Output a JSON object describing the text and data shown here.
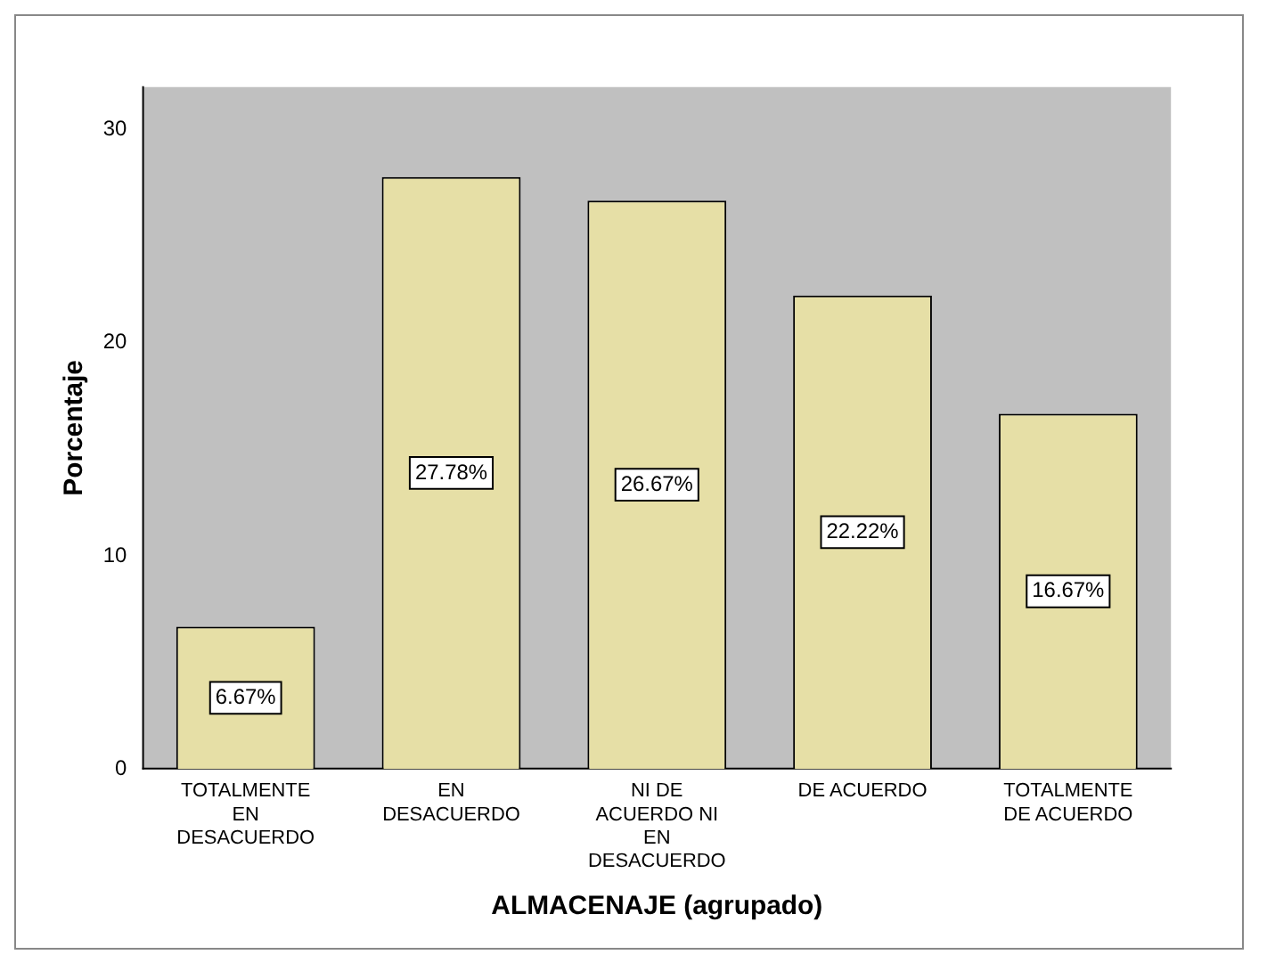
{
  "chart_data": {
    "type": "bar",
    "xlabel": "ALMACENAJE (agrupado)",
    "ylabel": "Porcentaje",
    "categories": [
      "TOTALMENTE EN DESACUERDO",
      "EN DESACUERDO",
      "NI DE ACUERDO NI EN DESACUERDO",
      "DE ACUERDO",
      "TOTALMENTE DE ACUERDO"
    ],
    "values": [
      6.67,
      27.78,
      26.67,
      22.22,
      16.67
    ],
    "value_labels": [
      "6.67%",
      "27.78%",
      "26.67%",
      "22.22%",
      "16.67%"
    ],
    "color": "#e6dfa6",
    "ylim": [
      0,
      32
    ],
    "yticks": [
      0,
      10,
      20,
      30
    ],
    "grid": false,
    "legend": false
  }
}
